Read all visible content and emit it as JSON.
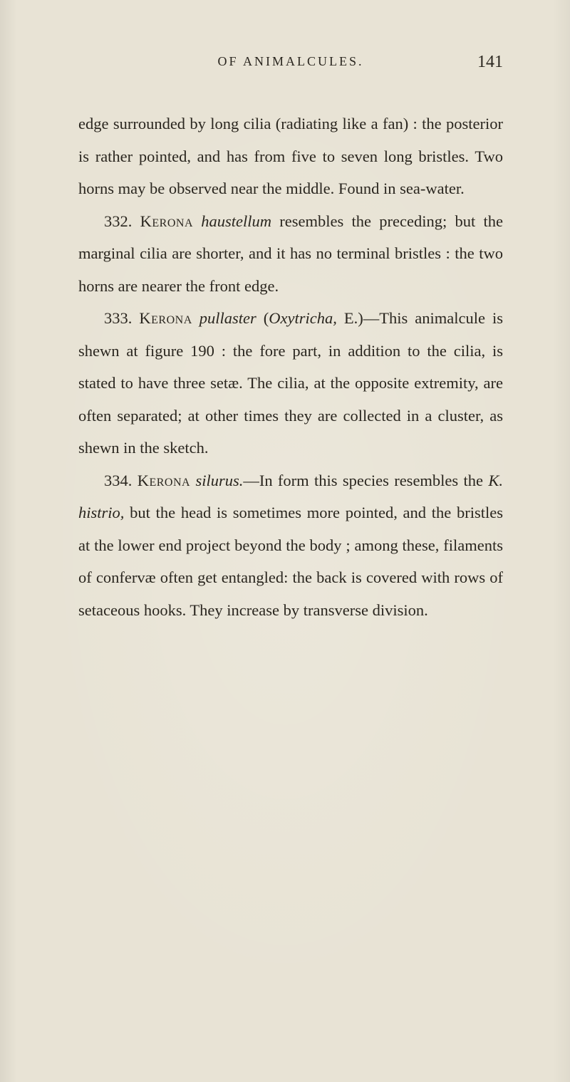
{
  "page": {
    "running_title": "OF ANIMALCULES.",
    "number": "141",
    "background_color": "#e8e3d5",
    "text_color": "#2a261f",
    "body_fontsize": 22.5,
    "line_height": 45.5,
    "header_fontsize": 18,
    "page_number_fontsize": 24
  },
  "paragraphs": {
    "p1a": "edge surrounded by long cilia (radiating like a fan) : the posterior is rather pointed, and has from five to seven long bristles.  Two horns may be observed near the middle.  Found in sea-water.",
    "p2_num": "332. ",
    "p2_genus": "Kerona",
    "p2_species": " haustellum",
    "p2_rest": " resembles the preceding; but the marginal cilia are shorter, and it has no terminal bristles : the two horns are nearer the front edge.",
    "p3_num": "333. ",
    "p3_genus": "Kerona",
    "p3_species": " pullaster",
    "p3_paren_open": " (",
    "p3_paren_it": "Oxytricha,",
    "p3_paren_close": " E.)",
    "p3_rest": "—This animal­cule is shewn at figure 190 : the fore part, in addition to the cilia, is stated to have three setæ.  The cilia, at the opposite extremity, are often separated; at other times they are collected in a cluster, as shewn in the sketch.",
    "p4_num": "334. ",
    "p4_genus": "Kerona",
    "p4_species": " silurus.",
    "p4_mid1": "—In form this species resembles the ",
    "p4_abbrev": "K. histrio,",
    "p4_rest": " but the head is sometimes more pointed, and the bristles at the lower end project beyond the body ; among these, filaments of confervæ often get en­tangled: the back is covered with rows of setaceous hooks.  They increase by transverse division."
  }
}
